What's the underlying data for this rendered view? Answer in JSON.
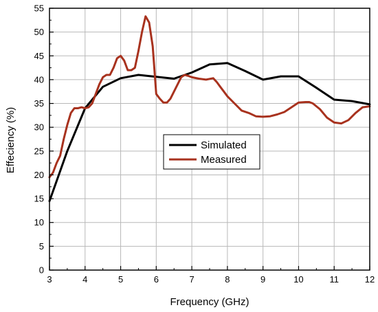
{
  "chart_data": {
    "type": "line",
    "xlabel": "Frequency (GHz)",
    "ylabel": "Effeciency (%)",
    "xlim": [
      3,
      12
    ],
    "ylim": [
      0,
      55
    ],
    "x_ticks": [
      "3",
      "4",
      "5",
      "6",
      "7",
      "8",
      "9",
      "10",
      "11",
      "12"
    ],
    "y_ticks": [
      "0",
      "5",
      "10",
      "15",
      "20",
      "25",
      "30",
      "35",
      "40",
      "45",
      "50",
      "55"
    ],
    "grid": true,
    "legend_position": "center",
    "series": [
      {
        "name": "Simulated",
        "color": "#000000",
        "x": [
          3.0,
          3.5,
          4.0,
          4.5,
          5.0,
          5.5,
          6.0,
          6.5,
          7.0,
          7.5,
          8.0,
          8.5,
          9.0,
          9.5,
          10.0,
          10.5,
          11.0,
          11.5,
          12.0
        ],
        "y": [
          14.5,
          25.0,
          34.0,
          38.5,
          40.3,
          41.0,
          40.6,
          40.2,
          41.5,
          43.2,
          43.5,
          41.8,
          40.0,
          40.7,
          40.7,
          38.3,
          35.8,
          35.5,
          34.8
        ]
      },
      {
        "name": "Measured",
        "color": "#a8321e",
        "x": [
          3.0,
          3.1,
          3.2,
          3.3,
          3.4,
          3.5,
          3.6,
          3.7,
          3.8,
          3.9,
          4.0,
          4.1,
          4.2,
          4.3,
          4.4,
          4.5,
          4.6,
          4.7,
          4.8,
          4.9,
          5.0,
          5.1,
          5.2,
          5.3,
          5.4,
          5.5,
          5.6,
          5.7,
          5.8,
          5.9,
          6.0,
          6.05,
          6.1,
          6.2,
          6.3,
          6.4,
          6.5,
          6.6,
          6.7,
          6.8,
          6.9,
          7.0,
          7.2,
          7.4,
          7.6,
          7.7,
          7.8,
          7.9,
          8.0,
          8.2,
          8.4,
          8.6,
          8.8,
          9.0,
          9.2,
          9.4,
          9.6,
          9.8,
          10.0,
          10.2,
          10.3,
          10.4,
          10.6,
          10.8,
          11.0,
          11.2,
          11.4,
          11.6,
          11.8,
          12.0
        ],
        "y": [
          19.5,
          20.5,
          22.5,
          24.0,
          27.5,
          30.5,
          33.0,
          34.0,
          34.0,
          34.2,
          34.0,
          34.2,
          35.0,
          37.0,
          39.0,
          40.5,
          41.0,
          41.0,
          42.5,
          44.5,
          45.0,
          44.0,
          42.0,
          42.0,
          42.5,
          46.0,
          50.0,
          53.3,
          52.0,
          47.0,
          37.0,
          36.5,
          36.0,
          35.2,
          35.2,
          36.0,
          37.5,
          39.0,
          40.5,
          41.0,
          40.8,
          40.5,
          40.2,
          40.0,
          40.3,
          39.5,
          38.5,
          37.5,
          36.5,
          35.0,
          33.5,
          33.0,
          32.3,
          32.2,
          32.3,
          32.7,
          33.2,
          34.2,
          35.2,
          35.3,
          35.3,
          35.0,
          33.8,
          32.0,
          31.0,
          30.8,
          31.5,
          33.0,
          34.2,
          34.4
        ]
      }
    ]
  }
}
